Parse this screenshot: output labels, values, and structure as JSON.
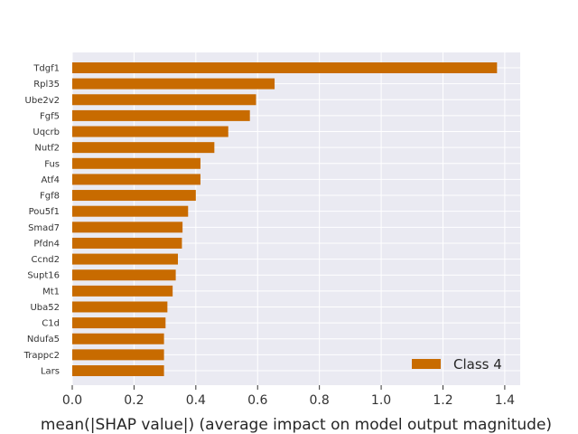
{
  "chart_data": {
    "type": "bar",
    "orientation": "horizontal",
    "categories": [
      "Tdgf1",
      "Rpl35",
      "Ube2v2",
      "Fgf5",
      "Uqcrb",
      "Nutf2",
      "Fus",
      "Atf4",
      "Fgf8",
      "Pou5f1",
      "Smad7",
      "Pfdn4",
      "Ccnd2",
      "Supt16",
      "Mt1",
      "Uba52",
      "C1d",
      "Ndufa5",
      "Trappc2",
      "Lars"
    ],
    "series": [
      {
        "name": "Class 4",
        "color": "#c86b00",
        "values": [
          1.375,
          0.655,
          0.595,
          0.575,
          0.505,
          0.46,
          0.415,
          0.415,
          0.4,
          0.375,
          0.357,
          0.355,
          0.342,
          0.335,
          0.325,
          0.308,
          0.302,
          0.297,
          0.297,
          0.297
        ]
      }
    ],
    "xlabel": "mean(|SHAP value|) (average impact on model output magnitude)",
    "xlim": [
      0,
      1.45
    ],
    "xticks": [
      "0.0",
      "0.2",
      "0.4",
      "0.6",
      "0.8",
      "1.0",
      "1.2",
      "1.4"
    ],
    "grid": true,
    "legend": "lower-right",
    "background": "#eaeaf2"
  }
}
